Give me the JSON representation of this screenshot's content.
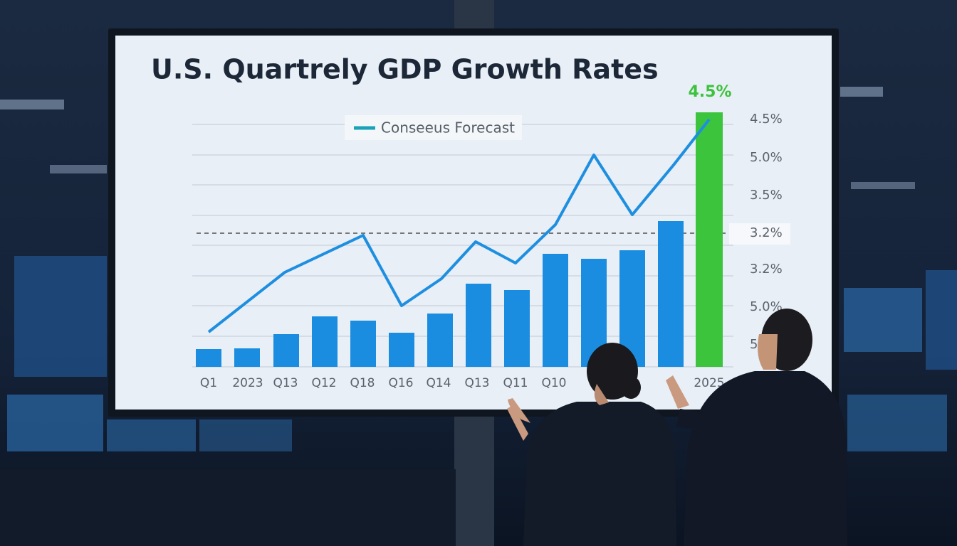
{
  "screen": {
    "title": "U.S. Quartrely GDP Growth Rates",
    "legend": "Conseeus Forecast",
    "highlight_label": "4.5%",
    "axis_labels": [
      "4.5%",
      "5.0%",
      "3.5%",
      "3.2%",
      "3.2%",
      "5.0%",
      "5"
    ],
    "x_labels": [
      "Q1",
      "2023",
      "Q13",
      "Q12",
      "Q18",
      "Q16",
      "Q14",
      "Q13",
      "Q11",
      "Q10",
      "2025"
    ]
  }
}
